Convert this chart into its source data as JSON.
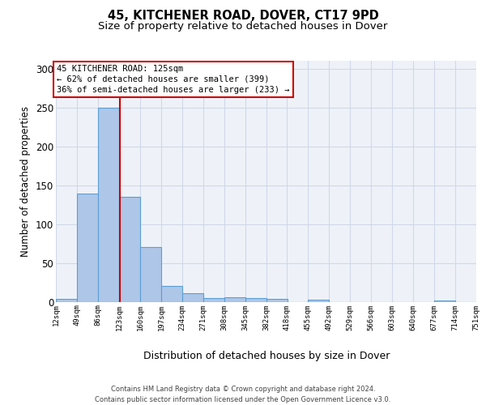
{
  "title": "45, KITCHENER ROAD, DOVER, CT17 9PD",
  "subtitle": "Size of property relative to detached houses in Dover",
  "xlabel": "Distribution of detached houses by size in Dover",
  "ylabel": "Number of detached properties",
  "footer_line1": "Contains HM Land Registry data © Crown copyright and database right 2024.",
  "footer_line2": "Contains public sector information licensed under the Open Government Licence v3.0.",
  "bin_edges": [
    12,
    49,
    86,
    123,
    160,
    197,
    234,
    271,
    308,
    345,
    382,
    418,
    455,
    492,
    529,
    566,
    603,
    640,
    677,
    714,
    751
  ],
  "bar_heights": [
    4,
    139,
    250,
    135,
    70,
    20,
    11,
    5,
    6,
    5,
    4,
    0,
    3,
    0,
    0,
    0,
    0,
    0,
    2,
    0,
    0
  ],
  "bar_color": "#aec6e8",
  "bar_edge_color": "#5a9fd4",
  "property_size": 125,
  "red_line_color": "#cc0000",
  "annotation_box_color": "#cc0000",
  "annotation_line1": "45 KITCHENER ROAD: 125sqm",
  "annotation_line2": "← 62% of detached houses are smaller (399)",
  "annotation_line3": "36% of semi-detached houses are larger (233) →",
  "ylim": [
    0,
    310
  ],
  "yticks": [
    0,
    50,
    100,
    150,
    200,
    250,
    300
  ],
  "grid_color": "#d0d8e8",
  "background_color": "#eef2f8",
  "fig_background": "#ffffff",
  "annotation_fontsize": 7.5,
  "title_fontsize": 10.5,
  "subtitle_fontsize": 9.5,
  "xlabel_fontsize": 9,
  "ylabel_fontsize": 8.5
}
